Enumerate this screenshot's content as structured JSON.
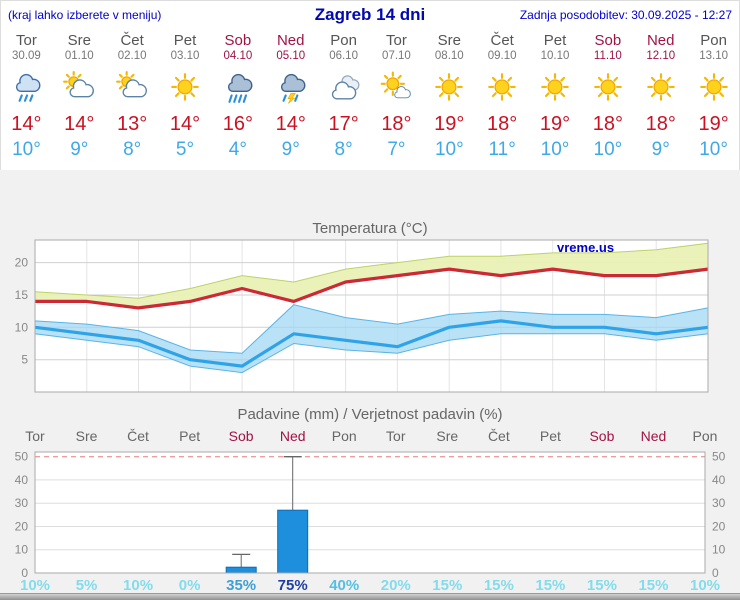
{
  "header": {
    "left": "(kraj lahko izberete v meniju)",
    "title": "Zagreb 14 dni",
    "right": "Zadnja posodobitev: 30.09.2025 - 12:27"
  },
  "watermark": "vreme.us",
  "colors": {
    "accent_blue": "#0000cc",
    "tmax_red": "#cc1122",
    "tmin_blue": "#3fa9e8",
    "weekend_red": "#a01345",
    "bar_blue": "#1e8fdd",
    "band_yellow": "#e9f1b6",
    "band_blue": "#9ed7f4"
  },
  "days": [
    {
      "name": "Tor",
      "date": "30.09",
      "weekend": false,
      "icon": "rain",
      "tmax": "14°",
      "tmin": "10°"
    },
    {
      "name": "Sre",
      "date": "01.10",
      "weekend": false,
      "icon": "partly-cloudy",
      "tmax": "14°",
      "tmin": "9°"
    },
    {
      "name": "Čet",
      "date": "02.10",
      "weekend": false,
      "icon": "partly-cloudy",
      "tmax": "13°",
      "tmin": "8°"
    },
    {
      "name": "Pet",
      "date": "03.10",
      "weekend": false,
      "icon": "sunny",
      "tmax": "14°",
      "tmin": "5°"
    },
    {
      "name": "Sob",
      "date": "04.10",
      "weekend": true,
      "icon": "heavy-rain",
      "tmax": "16°",
      "tmin": "4°"
    },
    {
      "name": "Ned",
      "date": "05.10",
      "weekend": true,
      "icon": "thunder-rain",
      "tmax": "14°",
      "tmin": "9°"
    },
    {
      "name": "Pon",
      "date": "06.10",
      "weekend": false,
      "icon": "cloudy",
      "tmax": "17°",
      "tmin": "8°"
    },
    {
      "name": "Tor",
      "date": "07.10",
      "weekend": false,
      "icon": "mostly-sunny",
      "tmax": "18°",
      "tmin": "7°"
    },
    {
      "name": "Sre",
      "date": "08.10",
      "weekend": false,
      "icon": "sunny",
      "tmax": "19°",
      "tmin": "10°"
    },
    {
      "name": "Čet",
      "date": "09.10",
      "weekend": false,
      "icon": "sunny",
      "tmax": "18°",
      "tmin": "11°"
    },
    {
      "name": "Pet",
      "date": "10.10",
      "weekend": false,
      "icon": "sunny",
      "tmax": "19°",
      "tmin": "10°"
    },
    {
      "name": "Sob",
      "date": "11.10",
      "weekend": true,
      "icon": "sunny",
      "tmax": "18°",
      "tmin": "10°"
    },
    {
      "name": "Ned",
      "date": "12.10",
      "weekend": true,
      "icon": "sunny",
      "tmax": "18°",
      "tmin": "9°"
    },
    {
      "name": "Pon",
      "date": "13.10",
      "weekend": false,
      "icon": "sunny",
      "tmax": "19°",
      "tmin": "10°"
    }
  ],
  "chart_data": [
    {
      "type": "line",
      "title": "Temperatura (°C)",
      "ylim": [
        0,
        23.5
      ],
      "yticks": [
        5,
        10,
        15,
        20
      ],
      "grid": true,
      "legend": "none",
      "series": [
        {
          "name": "tmax",
          "color": "#cc2936",
          "values": [
            14,
            14,
            13,
            14,
            16,
            14,
            17,
            18,
            19,
            18,
            19,
            18,
            18,
            19
          ]
        },
        {
          "name": "tmax_band_upper",
          "color": "#bdd16b",
          "values": [
            15.5,
            15,
            14.5,
            16,
            18,
            17,
            19,
            20,
            21,
            21,
            21.5,
            21.5,
            22,
            23
          ]
        },
        {
          "name": "tmin",
          "color": "#2fa3e8",
          "values": [
            10,
            9,
            8,
            5,
            4,
            9,
            8,
            7,
            10,
            11,
            10,
            10,
            9,
            10
          ]
        },
        {
          "name": "tmin_band_upper",
          "color": "#5ab4e5",
          "values": [
            11,
            10.5,
            9.5,
            6.5,
            6,
            13.5,
            11.5,
            10.5,
            12,
            12.5,
            12,
            12,
            11.5,
            13
          ]
        },
        {
          "name": "tmin_band_lower",
          "color": "#5ab4e5",
          "values": [
            9,
            8,
            7,
            4,
            3,
            7.5,
            6.5,
            6,
            8,
            9,
            9,
            9,
            8,
            9
          ]
        }
      ]
    },
    {
      "type": "bar",
      "title": "Padavine (mm) / Verjetnost padavin (%)",
      "categories": [
        "Tor",
        "Sre",
        "Čet",
        "Pet",
        "Sob",
        "Ned",
        "Pon",
        "Tor",
        "Sre",
        "Čet",
        "Pet",
        "Sob",
        "Ned",
        "Pon"
      ],
      "weekend_flags": [
        false,
        false,
        false,
        false,
        true,
        true,
        false,
        false,
        false,
        false,
        false,
        true,
        true,
        false
      ],
      "precip_mm": [
        0,
        0,
        0,
        0,
        2.5,
        27,
        0,
        0,
        0,
        0,
        0,
        0,
        0,
        0
      ],
      "precip_max_mm": [
        0,
        0,
        0,
        0,
        8,
        50,
        0,
        0,
        0,
        0,
        0,
        0,
        0,
        0
      ],
      "probability": [
        "10%",
        "5%",
        "10%",
        "0%",
        "35%",
        "75%",
        "40%",
        "20%",
        "15%",
        "15%",
        "15%",
        "15%",
        "15%",
        "10%"
      ],
      "prob_colors": [
        "#82dcec",
        "#82dcec",
        "#82dcec",
        "#82dcec",
        "#3ba0d8",
        "#1d3fa3",
        "#54bfe2",
        "#82dcec",
        "#82dcec",
        "#82dcec",
        "#82dcec",
        "#82dcec",
        "#82dcec",
        "#82dcec"
      ],
      "ylim": [
        0,
        52
      ],
      "yticks": [
        0,
        10,
        20,
        30,
        40,
        50
      ],
      "bar_color": "#1e8fdd",
      "grid": true,
      "legend": "none"
    }
  ]
}
